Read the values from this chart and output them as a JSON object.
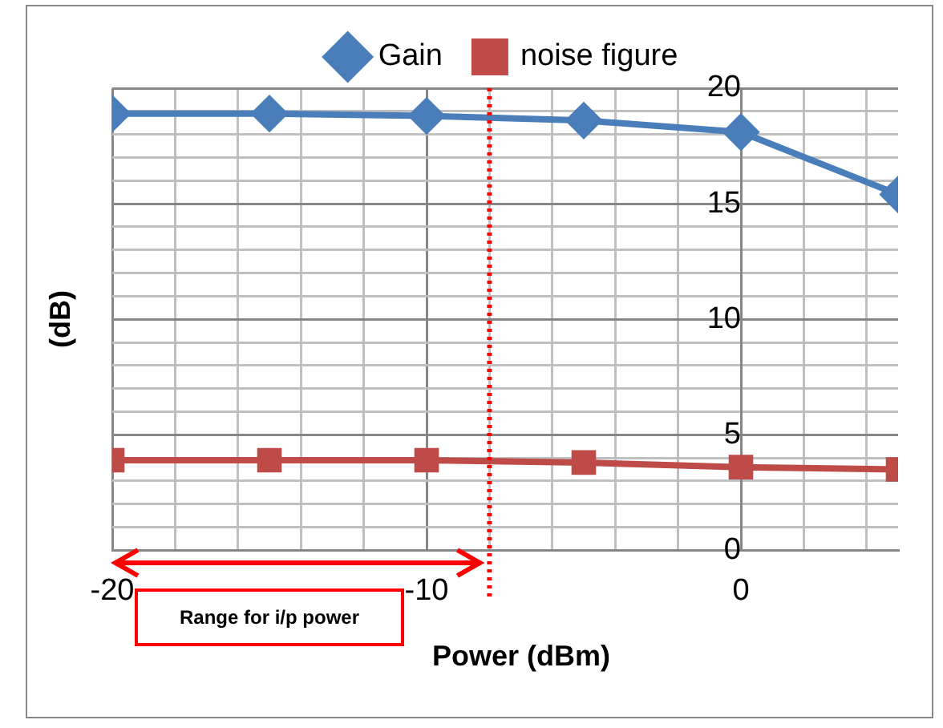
{
  "chart_data": {
    "type": "line",
    "xlabel": "Power (dBm)",
    "ylabel": "(dB)",
    "x": [
      -20,
      -15,
      -10,
      -5,
      0,
      5
    ],
    "series": [
      {
        "name": "Gain",
        "color": "#4a7ebb",
        "marker": "diamond",
        "values": [
          18.9,
          18.9,
          18.8,
          18.6,
          18.1,
          15.4
        ]
      },
      {
        "name": "noise figure",
        "color": "#be4b48",
        "marker": "square",
        "values": [
          3.9,
          3.9,
          3.9,
          3.8,
          3.6,
          3.5
        ]
      }
    ],
    "xlim": [
      -20,
      5
    ],
    "xticks": [
      -20,
      {
        "value": -18,
        "label": null
      },
      {
        "value": -16,
        "label": null
      },
      {
        "value": -14,
        "label": null
      },
      {
        "value": -12,
        "label": null
      },
      -10,
      {
        "value": -8,
        "label": null
      },
      {
        "value": -6,
        "label": null
      },
      {
        "value": -4,
        "label": null
      },
      {
        "value": -2,
        "label": null
      },
      0,
      {
        "value": 2,
        "label": null
      },
      {
        "value": 4,
        "label": null
      }
    ],
    "ylim": [
      0,
      20
    ],
    "yticks": [
      0,
      {
        "value": 1,
        "label": null
      },
      {
        "value": 2,
        "label": null
      },
      {
        "value": 3,
        "label": null
      },
      {
        "value": 4,
        "label": null
      },
      5,
      {
        "value": 6,
        "label": null
      },
      {
        "value": 7,
        "label": null
      },
      {
        "value": 8,
        "label": null
      },
      {
        "value": 9,
        "label": null
      },
      10,
      {
        "value": 11,
        "label": null
      },
      {
        "value": 12,
        "label": null
      },
      {
        "value": 13,
        "label": null
      },
      {
        "value": 14,
        "label": null
      },
      15,
      {
        "value": 16,
        "label": null
      },
      {
        "value": 17,
        "label": null
      },
      {
        "value": 18,
        "label": null
      },
      {
        "value": 19,
        "label": null
      },
      20
    ],
    "grid": true,
    "legend": "top",
    "line_style": "solid",
    "ref_lines": [
      {
        "axis": "x",
        "value": -8,
        "color": "#ff0000",
        "line_style": "dotted"
      }
    ],
    "annotations": [
      "Range for i/p power"
    ]
  }
}
